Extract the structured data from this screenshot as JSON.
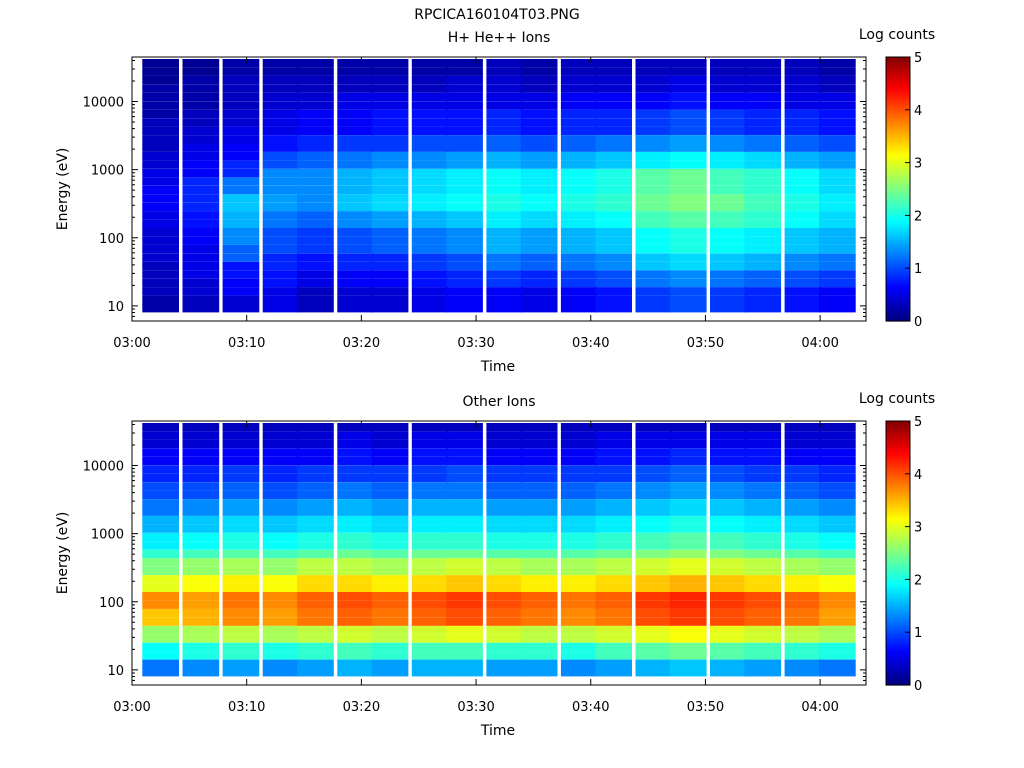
{
  "figure_title": "RPCICA160104T03.PNG",
  "chart_data": [
    {
      "type": "heatmap",
      "title": "H+ He++ Ions",
      "xlabel": "Time",
      "ylabel": "Energy (eV)",
      "x_ticks": [
        "03:00",
        "03:10",
        "03:20",
        "03:30",
        "03:40",
        "03:50",
        "04:00"
      ],
      "y_ticks": [
        "10",
        "100",
        "1000",
        "10000"
      ],
      "y_scale": "log",
      "ylim": [
        6,
        45000
      ],
      "xlim_minutes": [
        0,
        64
      ],
      "colorbar": {
        "label": "Log counts",
        "ticks": [
          "0",
          "1",
          "2",
          "3",
          "4",
          "5"
        ],
        "range": [
          0,
          5
        ]
      },
      "columns": [
        {
          "t": 2.5,
          "e": [
            0.2,
            0.3,
            0.3,
            0.4,
            0.4,
            0.5,
            0.6,
            0.6,
            0.5,
            0.4,
            0.3,
            0.3,
            0.2,
            0.2,
            0.1,
            0.1
          ]
        },
        {
          "t": 6.0,
          "e": [
            0.3,
            0.4,
            0.5,
            0.5,
            0.6,
            0.7,
            0.8,
            0.8,
            0.6,
            0.5,
            0.4,
            0.3,
            0.2,
            0.2,
            0.1
          ]
        },
        {
          "t": 9.5,
          "e": [
            0.4,
            0.6,
            0.7,
            1.1,
            1.3,
            1.5,
            1.6,
            1.2,
            0.8,
            0.6,
            0.5,
            0.4,
            0.3,
            0.3,
            0.2
          ]
        },
        {
          "t": 13.0,
          "e": [
            0.5,
            0.7,
            0.8,
            1.0,
            1.2,
            1.4,
            1.3,
            1.0,
            0.7,
            0.5,
            0.4,
            0.3,
            0.2
          ]
        },
        {
          "t": 16.0,
          "e": [
            0.3,
            0.5,
            0.7,
            0.9,
            1.1,
            1.3,
            1.3,
            1.1,
            0.8,
            0.6,
            0.4,
            0.3,
            0.2
          ]
        },
        {
          "t": 19.5,
          "e": [
            0.4,
            0.6,
            0.8,
            1.0,
            1.3,
            1.6,
            1.5,
            1.2,
            0.9,
            0.6,
            0.5,
            0.3,
            0.2
          ]
        },
        {
          "t": 22.5,
          "e": [
            0.4,
            0.6,
            0.8,
            1.1,
            1.4,
            1.7,
            1.6,
            1.3,
            0.9,
            0.7,
            0.5,
            0.3,
            0.2
          ]
        },
        {
          "t": 26.0,
          "e": [
            0.5,
            0.7,
            0.9,
            1.2,
            1.5,
            1.8,
            1.7,
            1.3,
            1.0,
            0.7,
            0.5,
            0.3,
            0.2
          ]
        },
        {
          "t": 29.0,
          "e": [
            0.6,
            0.8,
            1.0,
            1.3,
            1.6,
            1.9,
            1.8,
            1.4,
            1.0,
            0.7,
            0.5,
            0.4,
            0.2
          ]
        },
        {
          "t": 32.5,
          "e": [
            0.6,
            0.9,
            1.2,
            1.5,
            1.8,
            2.0,
            1.9,
            1.5,
            1.1,
            0.8,
            0.5,
            0.4,
            0.3
          ]
        },
        {
          "t": 35.5,
          "e": [
            0.5,
            0.8,
            1.1,
            1.4,
            1.7,
            1.9,
            1.8,
            1.4,
            1.0,
            0.7,
            0.5,
            0.3,
            0.2
          ]
        },
        {
          "t": 39.0,
          "e": [
            0.6,
            0.9,
            1.2,
            1.5,
            1.8,
            2.0,
            1.9,
            1.5,
            1.1,
            0.8,
            0.6,
            0.4,
            0.3
          ]
        },
        {
          "t": 42.0,
          "e": [
            0.7,
            1.0,
            1.3,
            1.6,
            1.9,
            2.1,
            2.0,
            1.6,
            1.2,
            0.8,
            0.6,
            0.4,
            0.3
          ]
        },
        {
          "t": 45.5,
          "e": [
            0.9,
            1.2,
            1.6,
            1.9,
            2.2,
            2.4,
            2.3,
            1.8,
            1.3,
            0.9,
            0.6,
            0.4,
            0.3
          ]
        },
        {
          "t": 48.5,
          "e": [
            1.0,
            1.3,
            1.7,
            2.0,
            2.3,
            2.5,
            2.4,
            1.9,
            1.4,
            1.0,
            0.7,
            0.5,
            0.3
          ]
        },
        {
          "t": 52.0,
          "e": [
            0.9,
            1.2,
            1.6,
            1.9,
            2.2,
            2.4,
            2.2,
            1.8,
            1.3,
            0.9,
            0.6,
            0.4,
            0.3
          ]
        },
        {
          "t": 55.0,
          "e": [
            0.8,
            1.1,
            1.5,
            1.8,
            2.1,
            2.2,
            2.1,
            1.7,
            1.2,
            0.8,
            0.6,
            0.4,
            0.3
          ]
        },
        {
          "t": 58.5,
          "e": [
            0.7,
            1.0,
            1.3,
            1.6,
            1.9,
            2.0,
            1.9,
            1.5,
            1.1,
            0.8,
            0.5,
            0.4,
            0.3
          ]
        },
        {
          "t": 61.5,
          "e": [
            0.6,
            0.9,
            1.2,
            1.5,
            1.7,
            1.8,
            1.7,
            1.4,
            1.0,
            0.7,
            0.5,
            0.3,
            0.2
          ]
        }
      ]
    },
    {
      "type": "heatmap",
      "title": "Other Ions",
      "xlabel": "Time",
      "ylabel": "Energy (eV)",
      "x_ticks": [
        "03:00",
        "03:10",
        "03:20",
        "03:30",
        "03:40",
        "03:50",
        "04:00"
      ],
      "y_ticks": [
        "10",
        "100",
        "1000",
        "10000"
      ],
      "y_scale": "log",
      "ylim": [
        6,
        45000
      ],
      "xlim_minutes": [
        0,
        64
      ],
      "colorbar": {
        "label": "Log counts",
        "ticks": [
          "0",
          "1",
          "2",
          "3",
          "4",
          "5"
        ],
        "range": [
          0,
          5
        ]
      },
      "columns": [
        {
          "t": 2.5,
          "e": [
            1.2,
            1.9,
            2.6,
            3.4,
            3.7,
            3.0,
            2.5,
            2.1,
            1.8,
            1.5,
            1.2,
            1.0,
            0.8,
            0.6,
            0.4,
            0.3
          ]
        },
        {
          "t": 6.0,
          "e": [
            1.3,
            2.0,
            2.7,
            3.5,
            3.6,
            3.1,
            2.6,
            2.2,
            1.9,
            1.6,
            1.3,
            1.0,
            0.8,
            0.6,
            0.4,
            0.3
          ]
        },
        {
          "t": 9.5,
          "e": [
            1.4,
            2.1,
            2.8,
            3.7,
            3.8,
            3.2,
            2.7,
            2.3,
            2.0,
            1.7,
            1.4,
            1.1,
            0.9,
            0.6,
            0.4,
            0.3
          ]
        },
        {
          "t": 13.0,
          "e": [
            1.3,
            2.0,
            2.7,
            3.6,
            3.7,
            3.1,
            2.6,
            2.2,
            1.9,
            1.6,
            1.3,
            1.0,
            0.8,
            0.6,
            0.4,
            0.3
          ]
        },
        {
          "t": 16.0,
          "e": [
            1.4,
            2.1,
            2.8,
            3.8,
            3.9,
            3.3,
            2.8,
            2.3,
            2.0,
            1.7,
            1.4,
            1.1,
            0.9,
            0.6,
            0.4,
            0.3
          ]
        },
        {
          "t": 19.5,
          "e": [
            1.5,
            2.2,
            2.9,
            3.9,
            4.0,
            3.3,
            2.8,
            2.4,
            2.1,
            1.8,
            1.5,
            1.2,
            0.9,
            0.7,
            0.5,
            0.3
          ]
        },
        {
          "t": 22.5,
          "e": [
            1.4,
            2.1,
            2.8,
            3.8,
            3.9,
            3.2,
            2.7,
            2.3,
            2.0,
            1.7,
            1.4,
            1.1,
            0.9,
            0.6,
            0.4,
            0.3
          ]
        },
        {
          "t": 26.0,
          "e": [
            1.5,
            2.2,
            2.9,
            3.9,
            4.0,
            3.3,
            2.8,
            2.4,
            2.1,
            1.8,
            1.5,
            1.2,
            0.9,
            0.7,
            0.5,
            0.3
          ]
        },
        {
          "t": 29.0,
          "e": [
            1.5,
            2.2,
            3.0,
            4.0,
            4.1,
            3.4,
            2.9,
            2.4,
            2.1,
            1.8,
            1.5,
            1.2,
            1.0,
            0.7,
            0.5,
            0.3
          ]
        },
        {
          "t": 32.5,
          "e": [
            1.4,
            2.1,
            2.9,
            3.9,
            4.0,
            3.3,
            2.8,
            2.3,
            2.0,
            1.7,
            1.4,
            1.1,
            0.9,
            0.6,
            0.4,
            0.3
          ]
        },
        {
          "t": 35.5,
          "e": [
            1.4,
            2.1,
            2.8,
            3.8,
            3.9,
            3.2,
            2.7,
            2.3,
            2.0,
            1.7,
            1.4,
            1.1,
            0.9,
            0.6,
            0.4,
            0.3
          ]
        },
        {
          "t": 39.0,
          "e": [
            1.3,
            2.0,
            2.8,
            3.7,
            3.8,
            3.2,
            2.7,
            2.3,
            2.0,
            1.7,
            1.4,
            1.1,
            0.9,
            0.6,
            0.4,
            0.3
          ]
        },
        {
          "t": 42.0,
          "e": [
            1.4,
            2.2,
            2.9,
            3.8,
            3.9,
            3.3,
            2.8,
            2.4,
            2.1,
            1.8,
            1.5,
            1.2,
            0.9,
            0.7,
            0.5,
            0.3
          ]
        },
        {
          "t": 45.5,
          "e": [
            1.5,
            2.3,
            3.0,
            4.0,
            4.1,
            3.4,
            2.9,
            2.5,
            2.2,
            1.9,
            1.6,
            1.3,
            1.0,
            0.7,
            0.5,
            0.3
          ]
        },
        {
          "t": 48.5,
          "e": [
            1.6,
            2.4,
            3.1,
            4.1,
            4.2,
            3.5,
            3.0,
            2.6,
            2.3,
            2.0,
            1.7,
            1.4,
            1.1,
            0.8,
            0.5,
            0.3
          ]
        },
        {
          "t": 52.0,
          "e": [
            1.5,
            2.3,
            3.0,
            4.0,
            4.1,
            3.4,
            2.9,
            2.5,
            2.2,
            1.9,
            1.6,
            1.3,
            1.0,
            0.7,
            0.5,
            0.3
          ]
        },
        {
          "t": 55.0,
          "e": [
            1.4,
            2.2,
            2.9,
            3.9,
            4.0,
            3.3,
            2.8,
            2.4,
            2.1,
            1.8,
            1.5,
            1.2,
            0.9,
            0.7,
            0.5,
            0.3
          ]
        },
        {
          "t": 58.5,
          "e": [
            1.3,
            2.1,
            2.8,
            3.8,
            3.9,
            3.2,
            2.7,
            2.3,
            2.0,
            1.7,
            1.4,
            1.1,
            0.9,
            0.6,
            0.4,
            0.3
          ]
        },
        {
          "t": 61.5,
          "e": [
            1.2,
            2.0,
            2.7,
            3.6,
            3.7,
            3.1,
            2.6,
            2.2,
            1.9,
            1.6,
            1.3,
            1.0,
            0.8,
            0.6,
            0.4,
            0.3
          ]
        }
      ]
    }
  ]
}
